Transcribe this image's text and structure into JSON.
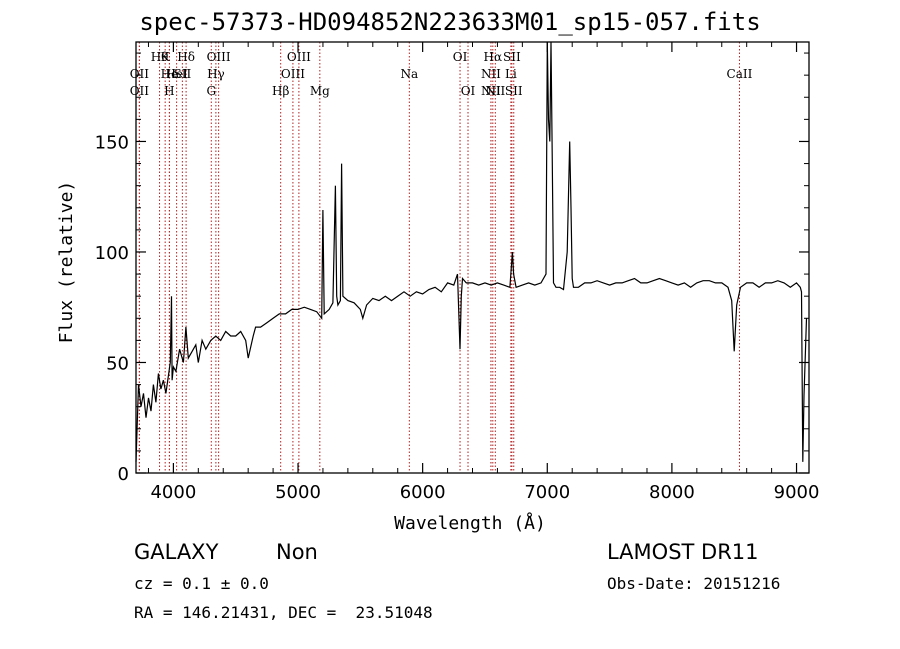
{
  "chart_data": {
    "type": "line",
    "title": "spec-57373-HD094852N223633M01_sp15-057.fits",
    "xlabel": "Wavelength (Å)",
    "ylabel": "Flux (relative)",
    "xlim": [
      3700,
      9100
    ],
    "ylim": [
      0,
      195
    ],
    "xticks": [
      4000,
      5000,
      6000,
      7000,
      8000,
      9000
    ],
    "yticks": [
      0,
      50,
      100,
      150
    ],
    "grid": false,
    "line_color": "#000000",
    "marker_color": "#b22222",
    "series": [
      {
        "x": [
          3700,
          3720,
          3740,
          3760,
          3780,
          3800,
          3820,
          3840,
          3860,
          3880,
          3900,
          3920,
          3940,
          3960,
          3975,
          3985,
          3990,
          4000,
          4020,
          4050,
          4080,
          4100,
          4120,
          4150,
          4180,
          4200,
          4230,
          4260,
          4300,
          4340,
          4380,
          4420,
          4460,
          4500,
          4540,
          4580,
          4600,
          4640,
          4660,
          4700,
          4750,
          4800,
          4850,
          4900,
          4950,
          5000,
          5050,
          5100,
          5150,
          5190,
          5200,
          5210,
          5250,
          5280,
          5300,
          5310,
          5320,
          5340,
          5350,
          5360,
          5400,
          5450,
          5500,
          5520,
          5550,
          5600,
          5650,
          5700,
          5750,
          5800,
          5850,
          5900,
          5950,
          6000,
          6050,
          6100,
          6150,
          6200,
          6250,
          6280,
          6300,
          6310,
          6320,
          6350,
          6400,
          6450,
          6500,
          6550,
          6600,
          6650,
          6700,
          6720,
          6730,
          6750,
          6800,
          6850,
          6900,
          6950,
          6990,
          7000,
          7010,
          7020,
          7030,
          7040,
          7050,
          7070,
          7100,
          7130,
          7160,
          7180,
          7190,
          7200,
          7210,
          7250,
          7300,
          7350,
          7400,
          7450,
          7500,
          7550,
          7600,
          7650,
          7700,
          7750,
          7800,
          7850,
          7900,
          7950,
          8000,
          8050,
          8100,
          8150,
          8200,
          8250,
          8300,
          8350,
          8400,
          8450,
          8480,
          8500,
          8520,
          8550,
          8600,
          8650,
          8700,
          8750,
          8800,
          8850,
          8900,
          8950,
          9000,
          9030,
          9040,
          9050,
          9060,
          9080
        ],
        "y": [
          5,
          40,
          30,
          36,
          25,
          34,
          28,
          40,
          32,
          45,
          38,
          42,
          36,
          44,
          50,
          80,
          42,
          48,
          46,
          56,
          50,
          66,
          52,
          55,
          58,
          50,
          60,
          56,
          60,
          62,
          60,
          64,
          62,
          62,
          64,
          60,
          52,
          62,
          66,
          66,
          68,
          70,
          72,
          72,
          74,
          74,
          75,
          74,
          73,
          70,
          119,
          72,
          74,
          77,
          130,
          80,
          76,
          78,
          140,
          80,
          78,
          77,
          74,
          70,
          76,
          79,
          78,
          80,
          78,
          80,
          82,
          80,
          82,
          81,
          83,
          84,
          82,
          86,
          85,
          90,
          56,
          80,
          88,
          86,
          86,
          85,
          86,
          85,
          86,
          85,
          84,
          100,
          90,
          84,
          85,
          86,
          85,
          86,
          90,
          200,
          160,
          150,
          200,
          140,
          86,
          84,
          84,
          83,
          100,
          150,
          120,
          88,
          84,
          84,
          86,
          86,
          87,
          86,
          85,
          86,
          86,
          87,
          88,
          86,
          86,
          87,
          88,
          87,
          86,
          85,
          86,
          84,
          86,
          87,
          87,
          86,
          86,
          84,
          78,
          55,
          76,
          84,
          86,
          86,
          84,
          86,
          86,
          87,
          86,
          84,
          86,
          84,
          82,
          5,
          35,
          70
        ]
      }
    ],
    "line_markers": [
      {
        "wavelength": 3727,
        "label": "OII",
        "row": 2
      },
      {
        "wavelength": 3727,
        "label": "OII",
        "row": 3
      },
      {
        "wavelength": 3889,
        "label": "Hθ",
        "row": 1
      },
      {
        "wavelength": 3934,
        "label": "K",
        "row": 1
      },
      {
        "wavelength": 3968,
        "label": "He",
        "row": 2
      },
      {
        "wavelength": 3968,
        "label": "H",
        "row": 3
      },
      {
        "wavelength": 4026,
        "label": "HeI",
        "row": 2
      },
      {
        "wavelength": 4102,
        "label": "Hδ",
        "row": 1
      },
      {
        "wavelength": 4072,
        "label": "SII",
        "row": 2
      },
      {
        "wavelength": 4341,
        "label": "Hγ",
        "row": 2
      },
      {
        "wavelength": 4304,
        "label": "G",
        "row": 3
      },
      {
        "wavelength": 4363,
        "label": "OIII",
        "row": 1
      },
      {
        "wavelength": 4861,
        "label": "Hβ",
        "row": 3
      },
      {
        "wavelength": 4959,
        "label": "OIII",
        "row": 2
      },
      {
        "wavelength": 5007,
        "label": "OIII",
        "row": 1
      },
      {
        "wavelength": 5175,
        "label": "Mg",
        "row": 3
      },
      {
        "wavelength": 5893,
        "label": "Na",
        "row": 2
      },
      {
        "wavelength": 6300,
        "label": "OI",
        "row": 1
      },
      {
        "wavelength": 6364,
        "label": "OI",
        "row": 3
      },
      {
        "wavelength": 6548,
        "label": "NII",
        "row": 2
      },
      {
        "wavelength": 6548,
        "label": "NII",
        "row": 3
      },
      {
        "wavelength": 6563,
        "label": "Hα",
        "row": 1
      },
      {
        "wavelength": 6583,
        "label": "NII",
        "row": 3
      },
      {
        "wavelength": 6708,
        "label": "Li",
        "row": 2
      },
      {
        "wavelength": 6716,
        "label": "SII",
        "row": 1
      },
      {
        "wavelength": 6731,
        "label": "SII",
        "row": 3
      },
      {
        "wavelength": 8542,
        "label": "CaII",
        "row": 2
      }
    ]
  },
  "info": {
    "object_class": "GALAXY",
    "subclass": "Non",
    "survey": "LAMOST DR11",
    "redshift": "cz = 0.1 ± 0.0",
    "obs_date": "Obs-Date: 20151216",
    "coords": "RA = 146.21431, DEC =  23.51048"
  }
}
